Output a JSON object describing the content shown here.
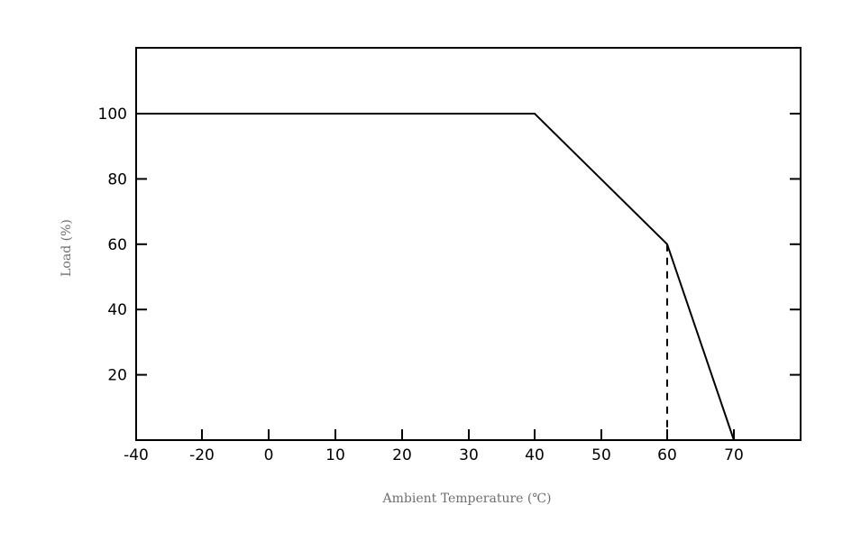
{
  "chart_data": {
    "type": "line",
    "xlabel": "Ambient Temperature (℃)",
    "ylabel": "Load (%)",
    "xlim": [
      -40,
      80
    ],
    "ylim": [
      0,
      120
    ],
    "x_ticks": [
      -40,
      -20,
      0,
      10,
      20,
      30,
      40,
      50,
      60,
      70
    ],
    "x_tick_labels": [
      "-40",
      "-20",
      "0",
      "10",
      "20",
      "30",
      "40",
      "50",
      "60",
      "70"
    ],
    "y_ticks": [
      20,
      40,
      60,
      80,
      100
    ],
    "y_tick_labels": [
      "20",
      "40",
      "60",
      "80",
      "100"
    ],
    "series": [
      {
        "x": [
          -40,
          40,
          60,
          70
        ],
        "y": [
          100,
          100,
          60,
          0
        ]
      }
    ],
    "reference_lines": [
      {
        "style": "dashed",
        "x": [
          60,
          60
        ],
        "y": [
          60,
          0
        ]
      }
    ],
    "grid": false,
    "line_color": "#000000",
    "label_color": "#6e6e6e"
  }
}
